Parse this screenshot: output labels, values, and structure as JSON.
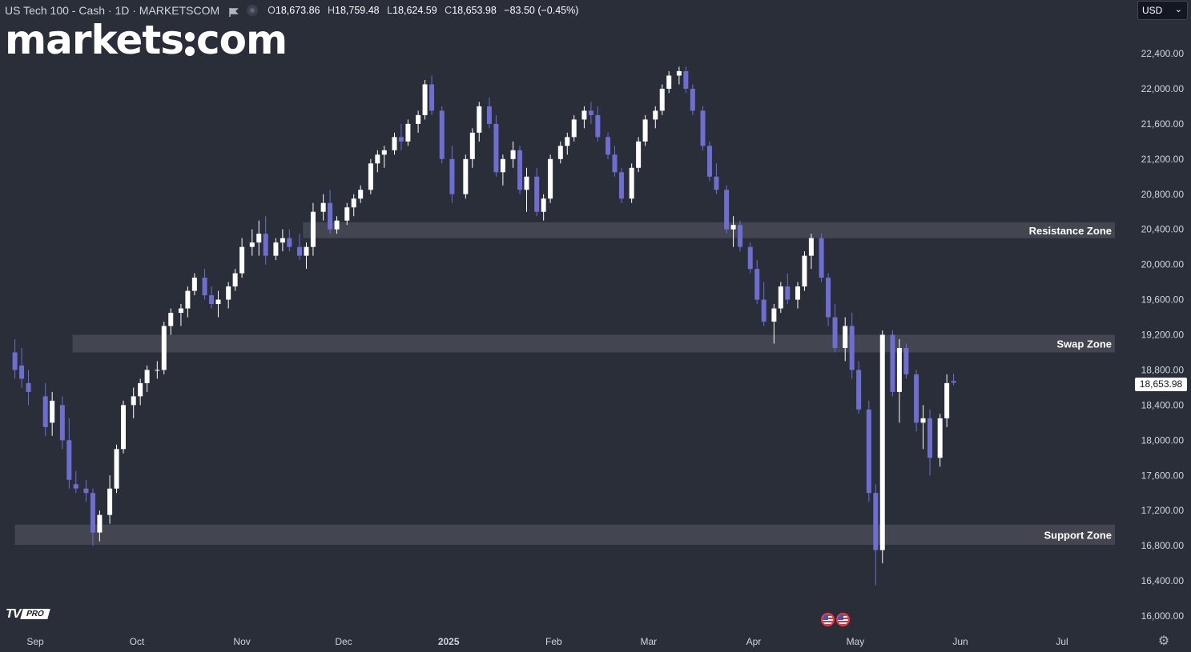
{
  "header": {
    "symbol": "US Tech 100 - Cash · 1D · MARKETSCOM",
    "open_label": "O",
    "open": "18,673.86",
    "high_label": "H",
    "high": "18,759.48",
    "low_label": "L",
    "low": "18,624.59",
    "close_label": "C",
    "close": "18,653.98",
    "change": "−83.50 (−0.45%)"
  },
  "logo": {
    "left": "markets",
    "right": "com"
  },
  "currency": {
    "value": "USD"
  },
  "last_price": "18,653.98",
  "tv_badge": {
    "brand": "TV",
    "tier": "PRO"
  },
  "colors": {
    "background": "#2a2e39",
    "up_candle": "#ffffff",
    "down_candle": "#6e6ed0",
    "zone_fill": "#434651",
    "axis_text": "#d1d4dc"
  },
  "chart_data": {
    "type": "candlestick",
    "y_axis": {
      "position": "right",
      "min": 16000,
      "max": 22400,
      "ticks": [
        "22,400.00",
        "22,000.00",
        "21,600.00",
        "21,200.00",
        "20,800.00",
        "20,400.00",
        "20,000.00",
        "19,600.00",
        "19,200.00",
        "18,800.00",
        "18,400.00",
        "18,000.00",
        "17,600.00",
        "17,200.00",
        "16,800.00",
        "16,400.00",
        "16,000.00"
      ]
    },
    "x_axis": {
      "ticks": [
        {
          "label": "Sep",
          "date": "2024-09-01"
        },
        {
          "label": "Oct",
          "date": "2024-10-01"
        },
        {
          "label": "Nov",
          "date": "2024-11-01"
        },
        {
          "label": "Dec",
          "date": "2024-12-01"
        },
        {
          "label": "2025",
          "date": "2025-01-01"
        },
        {
          "label": "Feb",
          "date": "2025-02-01"
        },
        {
          "label": "Mar",
          "date": "2025-03-01"
        },
        {
          "label": "Apr",
          "date": "2025-04-01"
        },
        {
          "label": "May",
          "date": "2025-05-01"
        },
        {
          "label": "Jun",
          "date": "2025-06-01"
        },
        {
          "label": "Jul",
          "date": "2025-07-01"
        }
      ]
    },
    "zones": [
      {
        "name": "Resistance Zone",
        "from": 20300,
        "to": 20480,
        "start": "2024-11-19"
      },
      {
        "name": "Swap Zone",
        "from": 19000,
        "to": 19200,
        "start": "2024-09-12"
      },
      {
        "name": "Support Zone",
        "from": 16810,
        "to": 17040,
        "start": "2024-08-26"
      }
    ],
    "series": [
      {
        "values": [
          [
            "2024-08-26",
            19000,
            19150,
            18700,
            18800
          ],
          [
            "2024-08-28",
            18850,
            19050,
            18600,
            18700
          ],
          [
            "2024-08-30",
            18650,
            18800,
            18400,
            18550
          ],
          [
            "2024-09-04",
            18500,
            18650,
            18050,
            18150
          ],
          [
            "2024-09-06",
            18200,
            18550,
            18050,
            18450
          ],
          [
            "2024-09-09",
            18400,
            18500,
            17900,
            18000
          ],
          [
            "2024-09-11",
            18000,
            18250,
            17450,
            17550
          ],
          [
            "2024-09-13",
            17500,
            17650,
            17400,
            17450
          ],
          [
            "2024-09-16",
            17450,
            17550,
            17300,
            17400
          ],
          [
            "2024-09-18",
            17400,
            17450,
            16800,
            16950
          ],
          [
            "2024-09-20",
            16950,
            17200,
            16850,
            17150
          ],
          [
            "2024-09-23",
            17150,
            17600,
            17050,
            17450
          ],
          [
            "2024-09-25",
            17450,
            17950,
            17400,
            17900
          ],
          [
            "2024-09-27",
            17900,
            18450,
            17850,
            18400
          ],
          [
            "2024-09-30",
            18400,
            18600,
            18250,
            18500
          ],
          [
            "2024-10-02",
            18500,
            18700,
            18400,
            18650
          ],
          [
            "2024-10-04",
            18650,
            18850,
            18550,
            18800
          ],
          [
            "2024-10-07",
            18800,
            18900,
            18700,
            18800
          ],
          [
            "2024-10-09",
            18800,
            19350,
            18750,
            19300
          ],
          [
            "2024-10-11",
            19300,
            19500,
            19200,
            19450
          ],
          [
            "2024-10-14",
            19450,
            19550,
            19300,
            19500
          ],
          [
            "2024-10-16",
            19500,
            19750,
            19400,
            19700
          ],
          [
            "2024-10-18",
            19700,
            19900,
            19650,
            19850
          ],
          [
            "2024-10-21",
            19850,
            19950,
            19600,
            19650
          ],
          [
            "2024-10-23",
            19650,
            19750,
            19500,
            19550
          ],
          [
            "2024-10-25",
            19550,
            19700,
            19400,
            19600
          ],
          [
            "2024-10-28",
            19600,
            19800,
            19500,
            19750
          ],
          [
            "2024-10-30",
            19750,
            19950,
            19700,
            19900
          ],
          [
            "2024-11-01",
            19900,
            20300,
            19850,
            20200
          ],
          [
            "2024-11-04",
            20200,
            20400,
            20100,
            20250
          ],
          [
            "2024-11-06",
            20250,
            20500,
            20100,
            20350
          ],
          [
            "2024-11-08",
            20350,
            20550,
            20000,
            20100
          ],
          [
            "2024-11-11",
            20100,
            20300,
            20050,
            20250
          ],
          [
            "2024-11-13",
            20250,
            20400,
            20150,
            20300
          ],
          [
            "2024-11-15",
            20300,
            20400,
            20150,
            20200
          ],
          [
            "2024-11-18",
            20200,
            20350,
            20050,
            20100
          ],
          [
            "2024-11-20",
            20100,
            20250,
            19950,
            20200
          ],
          [
            "2024-11-22",
            20200,
            20700,
            20100,
            20600
          ],
          [
            "2024-11-25",
            20600,
            20800,
            20500,
            20700
          ],
          [
            "2024-11-27",
            20700,
            20850,
            20350,
            20400
          ],
          [
            "2024-11-29",
            20400,
            20550,
            20350,
            20500
          ],
          [
            "2024-12-02",
            20500,
            20700,
            20450,
            20650
          ],
          [
            "2024-12-04",
            20650,
            20800,
            20550,
            20750
          ],
          [
            "2024-12-06",
            20750,
            20900,
            20700,
            20850
          ],
          [
            "2024-12-09",
            20850,
            21200,
            20800,
            21150
          ],
          [
            "2024-12-11",
            21150,
            21300,
            21050,
            21250
          ],
          [
            "2024-12-13",
            21250,
            21350,
            21100,
            21300
          ],
          [
            "2024-12-16",
            21300,
            21500,
            21250,
            21450
          ],
          [
            "2024-12-18",
            21450,
            21600,
            21300,
            21400
          ],
          [
            "2024-12-20",
            21400,
            21650,
            21350,
            21600
          ],
          [
            "2024-12-23",
            21600,
            21750,
            21500,
            21700
          ],
          [
            "2024-12-25",
            21700,
            22100,
            21650,
            22050
          ],
          [
            "2024-12-27",
            22050,
            22150,
            21700,
            21750
          ],
          [
            "2024-12-30",
            21750,
            21800,
            21150,
            21200
          ],
          [
            "2025-01-02",
            21200,
            21350,
            20700,
            20800
          ],
          [
            "2025-01-06",
            20800,
            21250,
            20750,
            21200
          ],
          [
            "2025-01-08",
            21200,
            21550,
            21100,
            21500
          ],
          [
            "2025-01-10",
            21500,
            21850,
            21400,
            21800
          ],
          [
            "2025-01-13",
            21800,
            21900,
            21550,
            21600
          ],
          [
            "2025-01-15",
            21600,
            21700,
            21000,
            21050
          ],
          [
            "2025-01-17",
            21050,
            21250,
            20900,
            21200
          ],
          [
            "2025-01-20",
            21200,
            21400,
            21100,
            21300
          ],
          [
            "2025-01-22",
            21300,
            21350,
            20800,
            20850
          ],
          [
            "2025-01-24",
            20850,
            21100,
            20600,
            21000
          ],
          [
            "2025-01-27",
            21000,
            21100,
            20550,
            20600
          ],
          [
            "2025-01-29",
            20600,
            20800,
            20500,
            20750
          ],
          [
            "2025-01-31",
            20750,
            21250,
            20700,
            21200
          ],
          [
            "2025-02-03",
            21200,
            21400,
            21150,
            21350
          ],
          [
            "2025-02-05",
            21350,
            21500,
            21250,
            21450
          ],
          [
            "2025-02-07",
            21450,
            21700,
            21400,
            21650
          ],
          [
            "2025-02-10",
            21650,
            21800,
            21550,
            21750
          ],
          [
            "2025-02-12",
            21750,
            21850,
            21600,
            21700
          ],
          [
            "2025-02-14",
            21700,
            21800,
            21400,
            21450
          ],
          [
            "2025-02-17",
            21450,
            21500,
            21200,
            21250
          ],
          [
            "2025-02-19",
            21250,
            21350,
            21000,
            21050
          ],
          [
            "2025-02-21",
            21050,
            21100,
            20700,
            20750
          ],
          [
            "2025-02-24",
            20750,
            21150,
            20700,
            21100
          ],
          [
            "2025-02-26",
            21100,
            21450,
            21050,
            21400
          ],
          [
            "2025-02-28",
            21400,
            21700,
            21350,
            21650
          ],
          [
            "2025-03-03",
            21650,
            21800,
            21550,
            21750
          ],
          [
            "2025-03-05",
            21750,
            22050,
            21700,
            22000
          ],
          [
            "2025-03-07",
            22000,
            22200,
            21950,
            22150
          ],
          [
            "2025-03-10",
            22150,
            22250,
            22050,
            22200
          ],
          [
            "2025-03-12",
            22200,
            22250,
            21950,
            22000
          ],
          [
            "2025-03-14",
            22000,
            22050,
            21700,
            21750
          ],
          [
            "2025-03-17",
            21750,
            21800,
            21300,
            21350
          ],
          [
            "2025-03-19",
            21350,
            21400,
            20950,
            21000
          ],
          [
            "2025-03-21",
            21000,
            21150,
            20800,
            20850
          ],
          [
            "2025-03-24",
            20850,
            20900,
            20350,
            20400
          ],
          [
            "2025-03-26",
            20400,
            20550,
            20200,
            20450
          ],
          [
            "2025-03-28",
            20450,
            20500,
            20150,
            20200
          ],
          [
            "2025-03-31",
            20200,
            20250,
            19900,
            19950
          ],
          [
            "2025-04-02",
            19950,
            20050,
            19550,
            19600
          ],
          [
            "2025-04-04",
            19600,
            19800,
            19300,
            19350
          ],
          [
            "2025-04-07",
            19350,
            19550,
            19100,
            19500
          ],
          [
            "2025-04-09",
            19500,
            19800,
            19450,
            19750
          ],
          [
            "2025-04-11",
            19750,
            19900,
            19550,
            19600
          ],
          [
            "2025-04-14",
            19600,
            19800,
            19500,
            19750
          ],
          [
            "2025-04-16",
            19750,
            20150,
            19700,
            20100
          ],
          [
            "2025-04-18",
            20100,
            20350,
            19950,
            20300
          ],
          [
            "2025-04-21",
            20300,
            20350,
            19800,
            19850
          ],
          [
            "2025-04-23",
            19850,
            19900,
            19300,
            19400
          ],
          [
            "2025-04-25",
            19400,
            19550,
            19000,
            19050
          ],
          [
            "2025-04-28",
            19050,
            19400,
            18900,
            19300
          ],
          [
            "2025-04-30",
            19300,
            19450,
            18700,
            18800
          ],
          [
            "2025-05-02",
            18800,
            18900,
            18300,
            18350
          ],
          [
            "2025-05-05",
            18350,
            18450,
            17300,
            17400
          ],
          [
            "2025-05-07",
            17400,
            17500,
            16350,
            16750
          ],
          [
            "2025-05-09",
            16750,
            19250,
            16600,
            19200
          ],
          [
            "2025-05-12",
            19200,
            19250,
            18500,
            18550
          ],
          [
            "2025-05-14",
            18550,
            19150,
            18200,
            19050
          ],
          [
            "2025-05-16",
            19050,
            19100,
            18700,
            18750
          ],
          [
            "2025-05-19",
            18750,
            18800,
            18100,
            18200
          ],
          [
            "2025-05-21",
            18200,
            18400,
            17900,
            18250
          ],
          [
            "2025-05-23",
            18250,
            18350,
            17600,
            17800
          ],
          [
            "2025-05-26",
            17800,
            18300,
            17700,
            18250
          ],
          [
            "2025-05-28",
            18250,
            18750,
            18150,
            18650
          ],
          [
            "2025-05-30",
            18674,
            18759,
            18625,
            18654
          ]
        ]
      }
    ]
  }
}
